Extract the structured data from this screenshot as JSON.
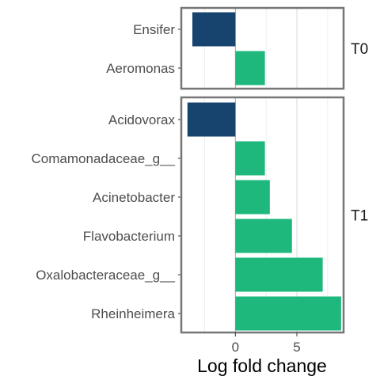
{
  "chart_data": {
    "type": "bar",
    "orientation": "horizontal",
    "xlabel": "Log fold change",
    "ylabel": "",
    "xlim": [
      -4.4,
      8.8
    ],
    "x_ticks": [
      0,
      5
    ],
    "grid": true,
    "legend": "none",
    "colors": {
      "negative": "#17446f",
      "positive": "#1eb87c",
      "panel_border": "#767676",
      "grid": "#d9d9d9",
      "zero_line": "#a6a6a6"
    },
    "panels": [
      {
        "name": "T0",
        "bars": [
          {
            "label": "Ensifer",
            "value": -3.5
          },
          {
            "label": "Aeromonas",
            "value": 2.4
          }
        ]
      },
      {
        "name": "T1",
        "bars": [
          {
            "label": "Acidovorax",
            "value": -3.9
          },
          {
            "label": "Comamonadaceae_g__",
            "value": 2.4
          },
          {
            "label": "Acinetobacter",
            "value": 2.8
          },
          {
            "label": "Flavobacterium",
            "value": 4.6
          },
          {
            "label": "Oxalobacteraceae_g__",
            "value": 7.1
          },
          {
            "label": "Rheinheimera",
            "value": 8.6
          }
        ]
      }
    ]
  }
}
